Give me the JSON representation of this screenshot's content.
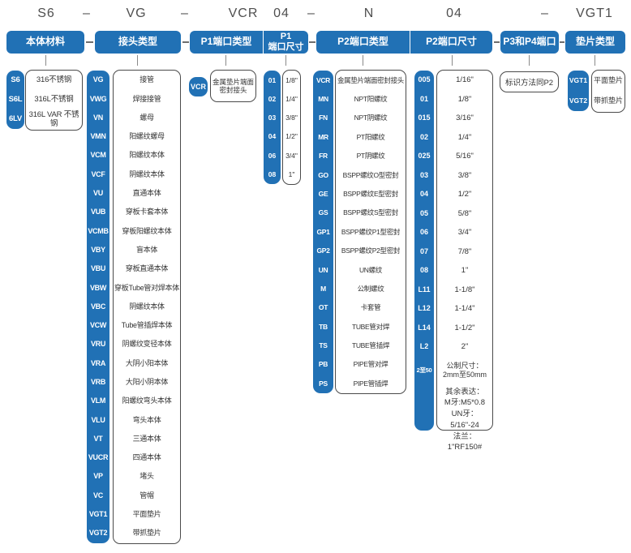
{
  "code_row": {
    "segments": [
      "S6",
      "–",
      "VG",
      "–",
      "VCR",
      "04",
      "–",
      "N",
      "04",
      "–",
      "VGT1"
    ]
  },
  "colors": {
    "accent_blue": "#2171b5"
  },
  "columns": [
    {
      "id": "body-material",
      "header": "本体材料",
      "items": [
        {
          "code": "S6",
          "label": "316不锈钢"
        },
        {
          "code": "S6L",
          "label": "316L不锈钢"
        },
        {
          "code": "6LV",
          "label": "316L VAR 不锈钢"
        }
      ]
    },
    {
      "id": "fitting-type",
      "header": "接头类型",
      "items": [
        {
          "code": "VG",
          "label": "接管"
        },
        {
          "code": "VWG",
          "label": "焊接接管"
        },
        {
          "code": "VN",
          "label": "螺母"
        },
        {
          "code": "VMN",
          "label": "阳螺纹螺母"
        },
        {
          "code": "VCM",
          "label": "阳螺纹本体"
        },
        {
          "code": "VCF",
          "label": "阴螺纹本体"
        },
        {
          "code": "VU",
          "label": "直通本体"
        },
        {
          "code": "VUB",
          "label": "穿板卡套本体"
        },
        {
          "code": "VCMB",
          "label": "穿板阳螺纹本体"
        },
        {
          "code": "VBY",
          "label": "盲本体"
        },
        {
          "code": "VBU",
          "label": "穿板直通本体"
        },
        {
          "code": "VBW",
          "label": "穿板Tube管对焊本体"
        },
        {
          "code": "VBC",
          "label": "阴螺纹本体"
        },
        {
          "code": "VCW",
          "label": "Tube管插焊本体"
        },
        {
          "code": "VRU",
          "label": "阴螺纹变径本体"
        },
        {
          "code": "VRA",
          "label": "大阴小阳本体"
        },
        {
          "code": "VRB",
          "label": "大阳小阴本体"
        },
        {
          "code": "VLM",
          "label": "阳螺纹弯头本体"
        },
        {
          "code": "VLU",
          "label": "弯头本体"
        },
        {
          "code": "VT",
          "label": "三通本体"
        },
        {
          "code": "VUCR",
          "label": "四通本体"
        },
        {
          "code": "VP",
          "label": "堵头"
        },
        {
          "code": "VC",
          "label": "管帽"
        },
        {
          "code": "VGT1",
          "label": "平面垫片"
        },
        {
          "code": "VGT2",
          "label": "带抓垫片"
        }
      ]
    },
    {
      "id": "p1-port-type",
      "header": "P1端口类型",
      "items": [
        {
          "code": "VCR",
          "label": "金属垫片端面\n密封接头"
        }
      ]
    },
    {
      "id": "p1-port-size",
      "header": "P1\n端口尺寸",
      "items": [
        {
          "code": "01",
          "label": "1/8\""
        },
        {
          "code": "02",
          "label": "1/4\""
        },
        {
          "code": "03",
          "label": "3/8\""
        },
        {
          "code": "04",
          "label": "1/2\""
        },
        {
          "code": "06",
          "label": "3/4\""
        },
        {
          "code": "08",
          "label": "1\""
        }
      ]
    },
    {
      "id": "p2-port-type",
      "header": "P2端口类型",
      "items": [
        {
          "code": "VCR",
          "label": "金属垫片端面密封接头"
        },
        {
          "code": "MN",
          "label": "NPT阳螺纹"
        },
        {
          "code": "FN",
          "label": "NPT阴螺纹"
        },
        {
          "code": "MR",
          "label": "PT阳螺纹"
        },
        {
          "code": "FR",
          "label": "PT阴螺纹"
        },
        {
          "code": "GO",
          "label": "BSPP螺纹O型密封"
        },
        {
          "code": "GE",
          "label": "BSPP螺纹E型密封"
        },
        {
          "code": "GS",
          "label": "BSPP螺纹S型密封"
        },
        {
          "code": "GP1",
          "label": "BSPP螺纹P1型密封"
        },
        {
          "code": "GP2",
          "label": "BSPP螺纹P2型密封"
        },
        {
          "code": "UN",
          "label": "UN螺纹"
        },
        {
          "code": "M",
          "label": "公制螺纹"
        },
        {
          "code": "OT",
          "label": "卡套管"
        },
        {
          "code": "TB",
          "label": "TUBE管对焊"
        },
        {
          "code": "TS",
          "label": "TUBE管插焊"
        },
        {
          "code": "PB",
          "label": "PIPE管对焊"
        },
        {
          "code": "PS",
          "label": "PIPE管插焊"
        }
      ]
    },
    {
      "id": "p2-port-size",
      "header": "P2端口尺寸",
      "items": [
        {
          "code": "005",
          "label": "1/16\""
        },
        {
          "code": "01",
          "label": "1/8\""
        },
        {
          "code": "015",
          "label": "3/16\""
        },
        {
          "code": "02",
          "label": "1/4\""
        },
        {
          "code": "025",
          "label": "5/16\""
        },
        {
          "code": "03",
          "label": "3/8\""
        },
        {
          "code": "04",
          "label": "1/2\""
        },
        {
          "code": "05",
          "label": "5/8\""
        },
        {
          "code": "06",
          "label": "3/4\""
        },
        {
          "code": "07",
          "label": "7/8\""
        },
        {
          "code": "08",
          "label": "1\""
        },
        {
          "code": "L11",
          "label": "1-1/8\""
        },
        {
          "code": "L12",
          "label": "1-1/4\""
        },
        {
          "code": "L14",
          "label": "1-1/2\""
        },
        {
          "code": "L2",
          "label": "2\""
        },
        {
          "code": "2至50",
          "label": "公制尺寸：\n2mm至50mm"
        }
      ],
      "notes": "其余表达：\nM牙:M5*0.8\nUN牙：5/16\"-24\n法兰：1\"RF150#"
    },
    {
      "id": "p3-p4-port",
      "header": "P3和P4端口",
      "note": "标识方法同P2"
    },
    {
      "id": "gasket-type",
      "header": "垫片类型",
      "items": [
        {
          "code": "VGT1",
          "label": "平面垫片"
        },
        {
          "code": "VGT2",
          "label": "带抓垫片"
        }
      ]
    }
  ]
}
